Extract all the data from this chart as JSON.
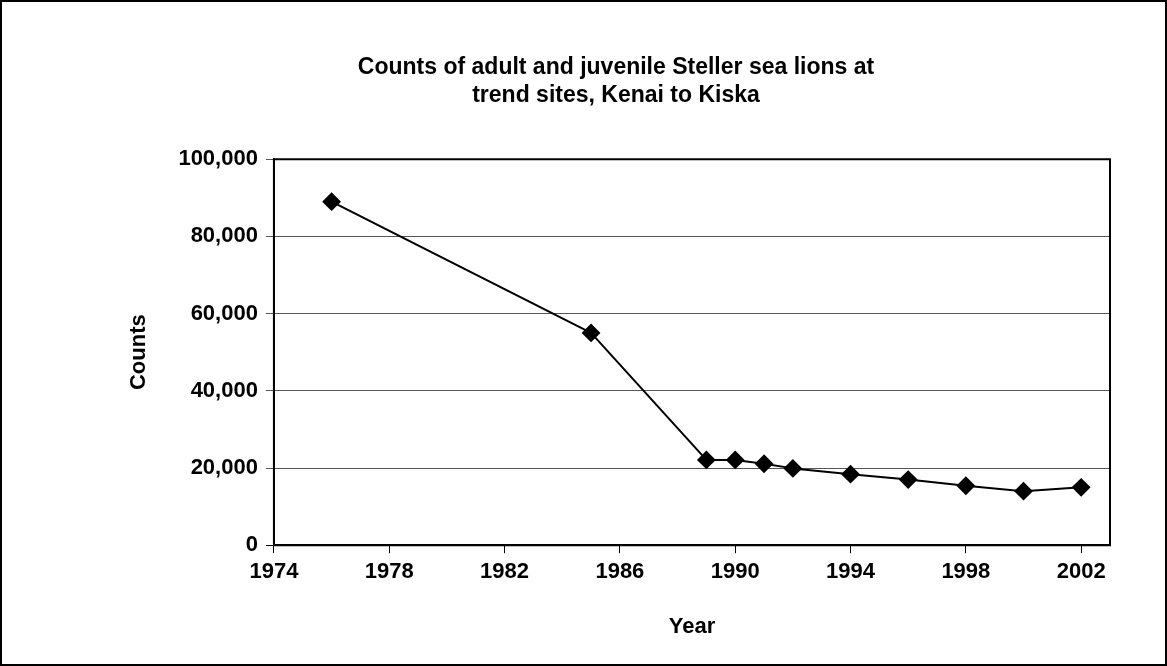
{
  "chart_data": {
    "type": "line",
    "title": [
      "Counts of adult and juvenile Steller sea lions at",
      "trend sites, Kenai to Kiska"
    ],
    "xlabel": "Year",
    "ylabel": "Counts",
    "x": [
      1976,
      1985,
      1989,
      1990,
      1991,
      1992,
      1994,
      1996,
      1998,
      2000,
      2002
    ],
    "series": [
      {
        "color": "#000000",
        "values": [
          89000,
          55000,
          22100,
          22100,
          21100,
          19900,
          18400,
          17000,
          15400,
          14000,
          15000
        ]
      }
    ],
    "xlim": [
      1974,
      2003
    ],
    "xticks": [
      1974,
      1978,
      1982,
      1986,
      1990,
      1994,
      1998,
      2002
    ],
    "ylim": [
      0,
      100000
    ],
    "yticks": [
      {
        "value": 0,
        "label": "0"
      },
      {
        "value": 20000,
        "label": "20,000"
      },
      {
        "value": 40000,
        "label": "40,000"
      },
      {
        "value": 60000,
        "label": "60,000"
      },
      {
        "value": 80000,
        "label": "80,000"
      },
      {
        "value": 100000,
        "label": "100,000"
      }
    ],
    "grid": "y",
    "marker": "diamond",
    "line_style": "solid",
    "legend": false
  }
}
